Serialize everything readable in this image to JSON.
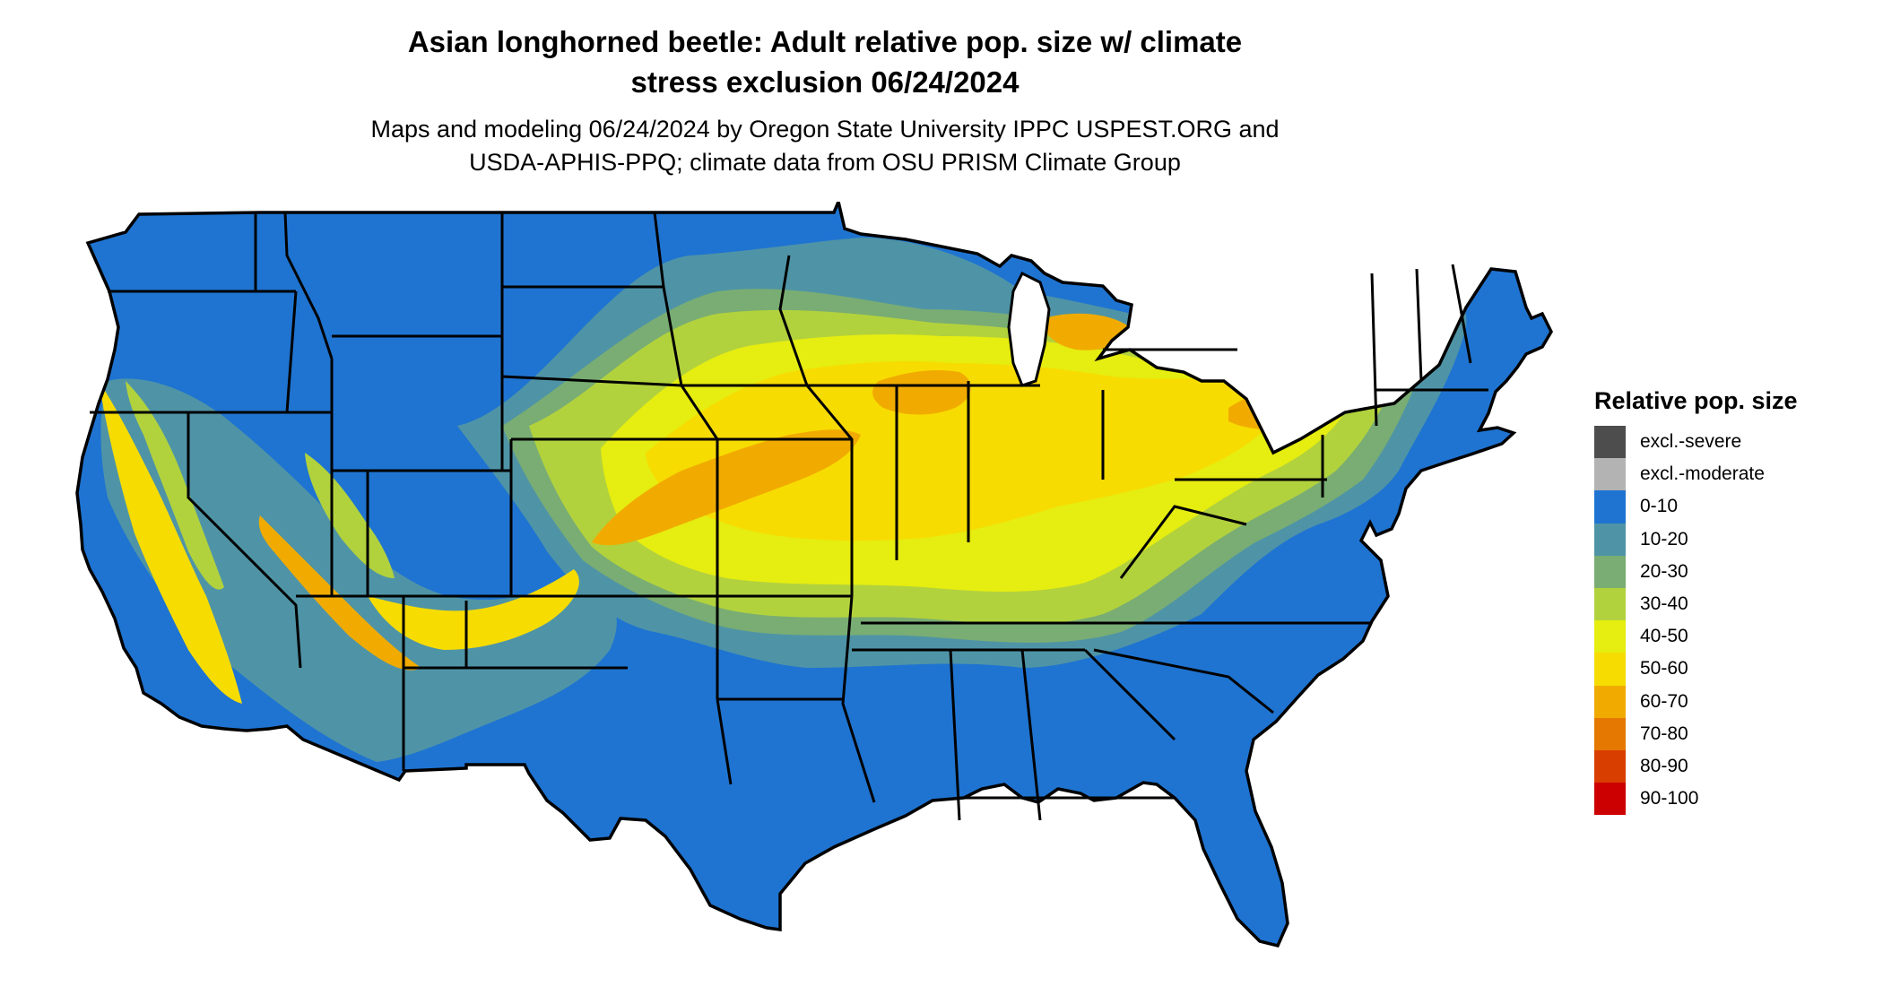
{
  "title": {
    "line1": "Asian longhorned beetle: Adult relative pop. size w/ climate",
    "line2": "stress exclusion 06/24/2024"
  },
  "subtitle": {
    "line1": "Maps and modeling 06/24/2024 by Oregon State University IPPC USPEST.ORG and",
    "line2": "USDA-APHIS-PPQ; climate data from OSU PRISM Climate Group"
  },
  "legend": {
    "title": "Relative pop. size",
    "items": [
      {
        "label": "excl.-severe",
        "color": "#4d4d4d"
      },
      {
        "label": "excl.-moderate",
        "color": "#b3b3b3"
      },
      {
        "label": "0-10",
        "color": "#1f74d1"
      },
      {
        "label": "10-20",
        "color": "#4f94a6"
      },
      {
        "label": "20-30",
        "color": "#79ad73"
      },
      {
        "label": "30-40",
        "color": "#b2d23d"
      },
      {
        "label": "40-50",
        "color": "#e6ed10"
      },
      {
        "label": "50-60",
        "color": "#f7dc02"
      },
      {
        "label": "60-70",
        "color": "#f1ab00"
      },
      {
        "label": "70-80",
        "color": "#e47800"
      },
      {
        "label": "80-90",
        "color": "#d83e00"
      },
      {
        "label": "90-100",
        "color": "#cc0000"
      }
    ]
  },
  "map": {
    "region": "contiguous-united-states",
    "state_border_color": "#000000"
  }
}
